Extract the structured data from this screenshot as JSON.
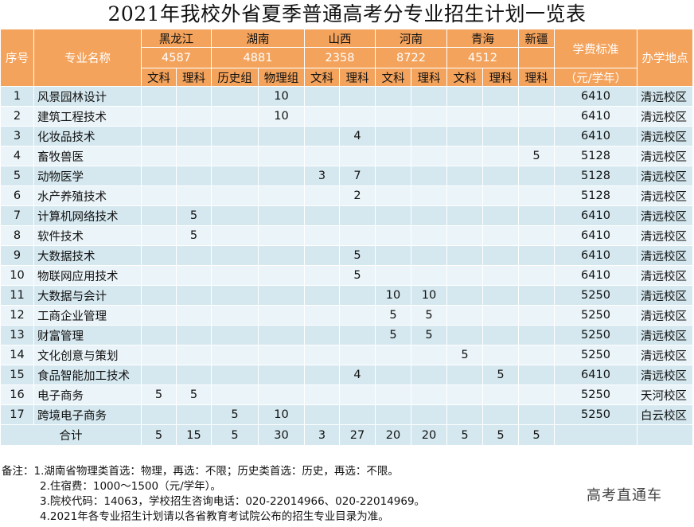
{
  "title": "2021年我校外省夏季普通高考分专业招生计划一览表",
  "headers": {
    "seq": "序号",
    "major": "专业名称",
    "tuition": "学费标准",
    "tuition_unit": "（元/学年）",
    "campus": "办学地点",
    "provinces": [
      {
        "name": "黑龙江",
        "code": "4587",
        "subjects": [
          "文科",
          "理科"
        ]
      },
      {
        "name": "湖南",
        "code": "4881",
        "subjects": [
          "历史组",
          "物理组"
        ]
      },
      {
        "name": "山西",
        "code": "2358",
        "subjects": [
          "文科",
          "理科"
        ]
      },
      {
        "name": "河南",
        "code": "8722",
        "subjects": [
          "文科",
          "理科"
        ]
      },
      {
        "name": "青海",
        "code": "4512",
        "subjects": [
          "文科",
          "理科"
        ]
      },
      {
        "name": "新疆",
        "code": "",
        "subjects": [
          "理科"
        ]
      }
    ]
  },
  "rows": [
    {
      "no": "1",
      "major": "风景园林设计",
      "counts": [
        "",
        "",
        "",
        "10",
        "",
        "",
        "",
        "",
        "",
        "",
        ""
      ],
      "tuition": "6410",
      "campus": "清远校区"
    },
    {
      "no": "2",
      "major": "建筑工程技术",
      "counts": [
        "",
        "",
        "",
        "10",
        "",
        "",
        "",
        "",
        "",
        "",
        ""
      ],
      "tuition": "6410",
      "campus": "清远校区"
    },
    {
      "no": "3",
      "major": "化妆品技术",
      "counts": [
        "",
        "",
        "",
        "",
        "",
        "4",
        "",
        "",
        "",
        "",
        ""
      ],
      "tuition": "6410",
      "campus": "清远校区"
    },
    {
      "no": "4",
      "major": "畜牧兽医",
      "counts": [
        "",
        "",
        "",
        "",
        "",
        "",
        "",
        "",
        "",
        "",
        "5"
      ],
      "tuition": "5128",
      "campus": "清远校区"
    },
    {
      "no": "5",
      "major": "动物医学",
      "counts": [
        "",
        "",
        "",
        "",
        "3",
        "7",
        "",
        "",
        "",
        "",
        ""
      ],
      "tuition": "5128",
      "campus": "清远校区"
    },
    {
      "no": "6",
      "major": "水产养殖技术",
      "counts": [
        "",
        "",
        "",
        "",
        "",
        "2",
        "",
        "",
        "",
        "",
        ""
      ],
      "tuition": "5128",
      "campus": "清远校区"
    },
    {
      "no": "7",
      "major": "计算机网络技术",
      "counts": [
        "",
        "5",
        "",
        "",
        "",
        "",
        "",
        "",
        "",
        "",
        ""
      ],
      "tuition": "6410",
      "campus": "清远校区"
    },
    {
      "no": "8",
      "major": "软件技术",
      "counts": [
        "",
        "5",
        "",
        "",
        "",
        "",
        "",
        "",
        "",
        "",
        ""
      ],
      "tuition": "6410",
      "campus": "清远校区"
    },
    {
      "no": "9",
      "major": "大数据技术",
      "counts": [
        "",
        "",
        "",
        "",
        "",
        "5",
        "",
        "",
        "",
        "",
        ""
      ],
      "tuition": "6410",
      "campus": "清远校区"
    },
    {
      "no": "10",
      "major": "物联网应用技术",
      "counts": [
        "",
        "",
        "",
        "",
        "",
        "5",
        "",
        "",
        "",
        "",
        ""
      ],
      "tuition": "6410",
      "campus": "清远校区"
    },
    {
      "no": "11",
      "major": "大数据与会计",
      "counts": [
        "",
        "",
        "",
        "",
        "",
        "",
        "10",
        "10",
        "",
        "",
        ""
      ],
      "tuition": "5250",
      "campus": "清远校区"
    },
    {
      "no": "12",
      "major": "工商企业管理",
      "counts": [
        "",
        "",
        "",
        "",
        "",
        "",
        "5",
        "5",
        "",
        "",
        ""
      ],
      "tuition": "5250",
      "campus": "清远校区"
    },
    {
      "no": "13",
      "major": "财富管理",
      "counts": [
        "",
        "",
        "",
        "",
        "",
        "",
        "5",
        "5",
        "",
        "",
        ""
      ],
      "tuition": "5250",
      "campus": "清远校区"
    },
    {
      "no": "14",
      "major": "文化创意与策划",
      "counts": [
        "",
        "",
        "",
        "",
        "",
        "",
        "",
        "",
        "5",
        "",
        ""
      ],
      "tuition": "5250",
      "campus": "清远校区"
    },
    {
      "no": "15",
      "major": "食品智能加工技术",
      "counts": [
        "",
        "",
        "",
        "",
        "",
        "4",
        "",
        "",
        "",
        "5",
        ""
      ],
      "tuition": "6410",
      "campus": "清远校区"
    },
    {
      "no": "16",
      "major": "电子商务",
      "counts": [
        "5",
        "5",
        "",
        "",
        "",
        "",
        "",
        "",
        "",
        "",
        ""
      ],
      "tuition": "5250",
      "campus": "天河校区"
    },
    {
      "no": "17",
      "major": "跨境电子商务",
      "counts": [
        "",
        "",
        "5",
        "10",
        "",
        "",
        "",
        "",
        "",
        "",
        ""
      ],
      "tuition": "5250",
      "campus": "白云校区"
    }
  ],
  "totals": {
    "label": "合计",
    "counts": [
      "5",
      "15",
      "5",
      "30",
      "3",
      "27",
      "20",
      "20",
      "5",
      "5",
      "5"
    ]
  },
  "notes": [
    "备注：1.湖南省物理类首选：物理，再选：不限；历史类首选：历史，再选：不限。",
    "2.住宿费：1000～1500（元/学年）。",
    "3.院校代码：14063，学校招生咨询电话：020-22014966、020-22014969。",
    "4.2021年各专业招生计划请以各省教育考试院公布的招生专业目录为准。"
  ],
  "watermark": "高考直通车",
  "colors": {
    "header": "#f4a35c",
    "row_odd": "#d5e8ef",
    "row_even": "#ebf4f8"
  }
}
